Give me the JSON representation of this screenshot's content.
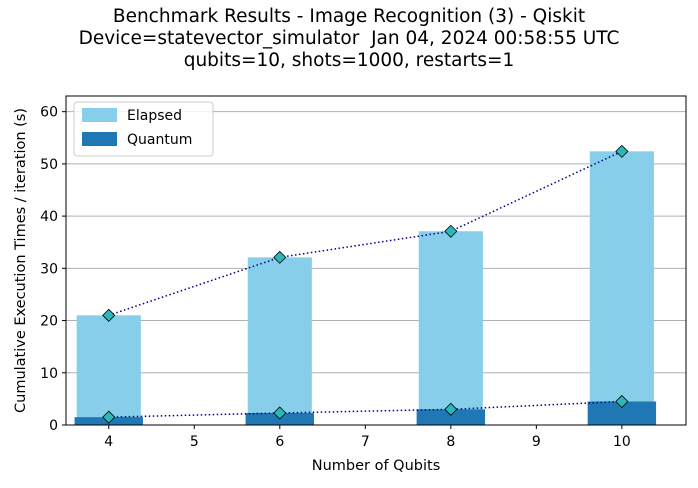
{
  "chart_data": {
    "type": "bar",
    "title": [
      "Benchmark Results - Image Recognition (3) - Qiskit",
      "Device=statevector_simulator  Jan 04, 2024 00:58:55 UTC",
      "qubits=10, shots=1000, restarts=1"
    ],
    "xlabel": "Number of Qubits",
    "ylabel": "Cumulative Execution Times / iteration (s)",
    "x": [
      4,
      6,
      8,
      10
    ],
    "xticks": [
      4,
      5,
      6,
      7,
      8,
      9,
      10
    ],
    "yticks": [
      0,
      10,
      20,
      30,
      40,
      50,
      60
    ],
    "xlim": [
      3.5,
      10.75
    ],
    "ylim": [
      0,
      63
    ],
    "grid": "horizontal",
    "legend_position": "top-left",
    "series": [
      {
        "name": "Elapsed",
        "values": [
          21.0,
          32.1,
          37.1,
          52.4
        ],
        "color": "#87ceeb",
        "bar_width": 0.75
      },
      {
        "name": "Quantum",
        "values": [
          1.5,
          2.3,
          3.0,
          4.5
        ],
        "color": "#1f77b4",
        "bar_width": 0.8
      }
    ],
    "line_style": {
      "color": "#00008b",
      "marker": "diamond",
      "marker_color": "#2bb8b8"
    }
  }
}
